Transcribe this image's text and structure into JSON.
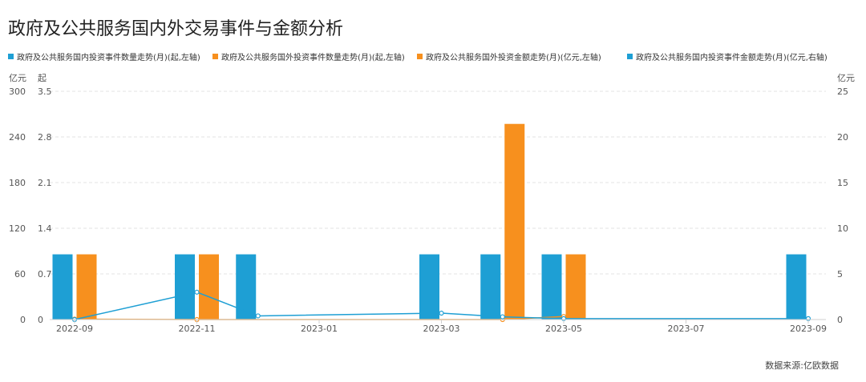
{
  "title": "政府及公共服务国内外交易事件与金额分析",
  "source": "数据来源:亿欧数据",
  "colors": {
    "domestic": "#1e9fd4",
    "foreign": "#f7901e"
  },
  "chart_data": {
    "type": "bar",
    "legend_position": "top-left",
    "grid": true,
    "categories": [
      "2022-09",
      "2022-10",
      "2022-11",
      "2022-12",
      "2023-01",
      "2023-02",
      "2023-03",
      "2023-04",
      "2023-05",
      "2023-06",
      "2023-07",
      "2023-08",
      "2023-09"
    ],
    "x_tick_labels": [
      "2022-09",
      "2022-11",
      "2023-01",
      "2023-03",
      "2023-05",
      "2023-07",
      "2023-09"
    ],
    "axes": {
      "amount_left": {
        "unit": "亿元",
        "ticks": [
          "0",
          "60",
          "120",
          "180",
          "240",
          "300"
        ],
        "range": [
          0,
          300
        ]
      },
      "count_left": {
        "unit": "起",
        "ticks": [
          "0",
          "0.7",
          "1.4",
          "2.1",
          "2.8",
          "3.5"
        ],
        "range": [
          0,
          3.5
        ]
      },
      "amount_right": {
        "unit": "亿元",
        "ticks": [
          "0",
          "5",
          "10",
          "15",
          "20",
          "25"
        ],
        "range": [
          0,
          25
        ]
      }
    },
    "series": [
      {
        "name": "政府及公共服务国内投资事件数量走势(月)(起,左轴)",
        "type": "bar",
        "axis": "count_left",
        "color": "#1e9fd4",
        "values": [
          1,
          0,
          1,
          1,
          0,
          0,
          1,
          1,
          1,
          0,
          0,
          0,
          1
        ]
      },
      {
        "name": "政府及公共服务国外投资事件数量走势(月)(起,左轴)",
        "type": "bar",
        "axis": "count_left",
        "color": "#f7901e",
        "values": [
          1,
          0,
          1,
          0,
          0,
          0,
          0,
          3,
          1,
          0,
          0,
          0,
          0
        ]
      },
      {
        "name": "政府及公共服务国外投资金额走势(月)(亿元,左轴)",
        "type": "line",
        "axis": "amount_left",
        "color": "#f7901e",
        "values": [
          0.5,
          null,
          0,
          null,
          null,
          null,
          null,
          0,
          4,
          null,
          null,
          null,
          null
        ]
      },
      {
        "name": "政府及公共服务国内投资事件金额走势(月)(亿元,右轴)",
        "type": "line",
        "axis": "amount_right",
        "color": "#1e9fd4",
        "values": [
          0,
          null,
          3,
          0.4,
          null,
          null,
          0.7,
          0.3,
          0.1,
          null,
          null,
          null,
          0.1
        ]
      }
    ]
  }
}
